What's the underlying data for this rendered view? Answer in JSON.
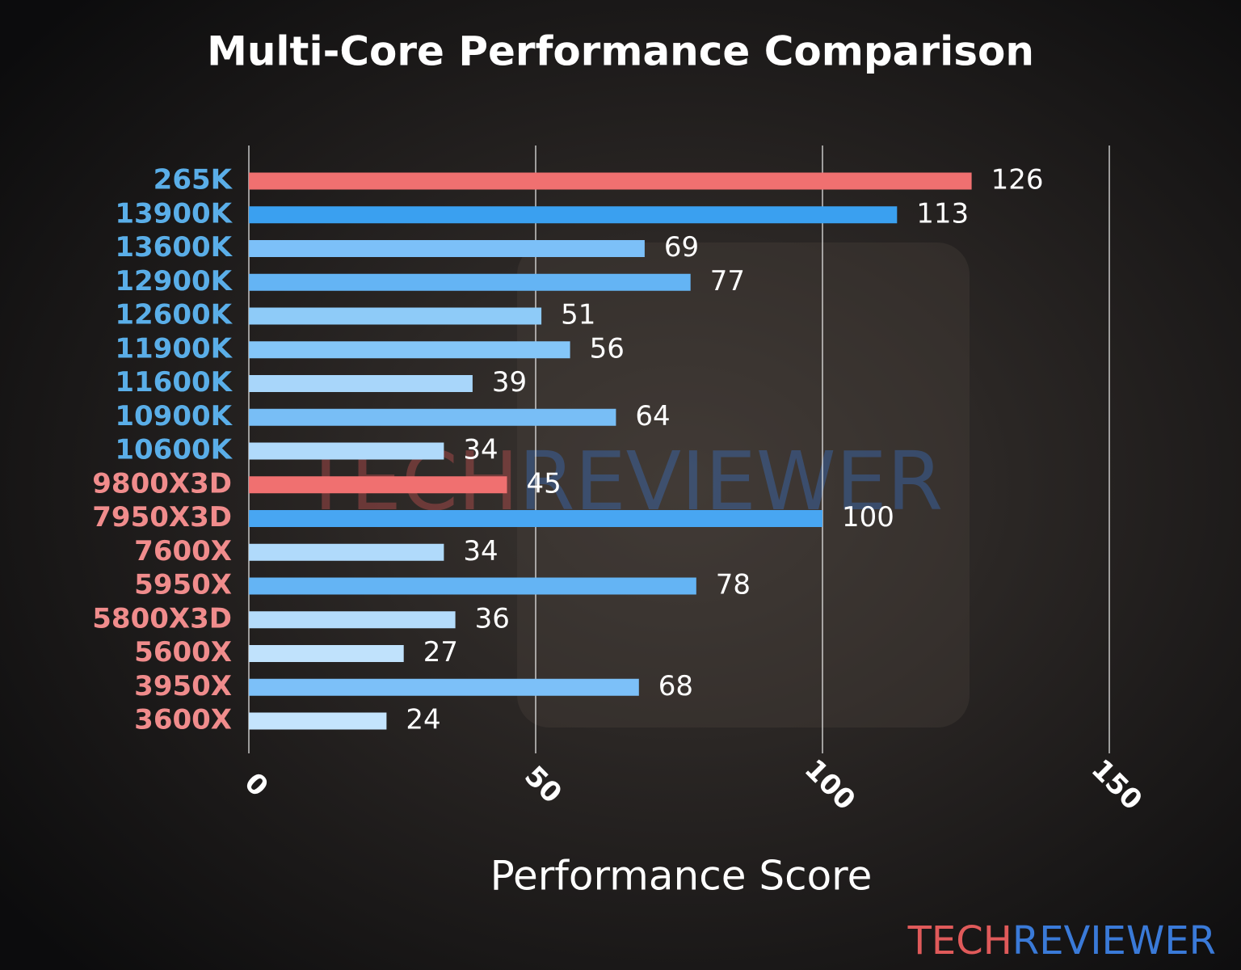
{
  "chart_data": {
    "type": "bar",
    "orientation": "horizontal",
    "title": "Multi-Core Performance Comparison",
    "x_label": "Performance Score",
    "categories": [
      "265K",
      "13900K",
      "13600K",
      "12900K",
      "12600K",
      "11900K",
      "11600K",
      "10900K",
      "10600K",
      "9800X3D",
      "7950X3D",
      "7600X",
      "5950X",
      "5800X3D",
      "5600X",
      "3950X",
      "3600X"
    ],
    "values": [
      126,
      113,
      69,
      77,
      51,
      56,
      39,
      64,
      34,
      45,
      100,
      34,
      78,
      36,
      27,
      68,
      24
    ],
    "colors": [
      "#f07070",
      "#3aa0f0",
      "#7cc0f8",
      "#64b4f4",
      "#8ecbf8",
      "#84c6f8",
      "#a8d6fa",
      "#78bef6",
      "#b0dafb",
      "#f07070",
      "#48a6f2",
      "#b0dafb",
      "#64b4f4",
      "#b4dcfb",
      "#c0e2fc",
      "#7cc0f8",
      "#c4e4fd"
    ],
    "label_colors": [
      "#5aaee8",
      "#5aaee8",
      "#5aaee8",
      "#5aaee8",
      "#5aaee8",
      "#5aaee8",
      "#5aaee8",
      "#5aaee8",
      "#5aaee8",
      "#f08c8c",
      "#f08c8c",
      "#f08c8c",
      "#f08c8c",
      "#f08c8c",
      "#f08c8c",
      "#f08c8c",
      "#f08c8c"
    ],
    "xlim": [
      0,
      150
    ],
    "xticks": [
      0,
      50,
      100,
      150
    ],
    "grid": true,
    "watermark": {
      "parts": [
        "TECH",
        "REVIEWER"
      ],
      "colors": [
        "#e05a5a",
        "#3a7ad8"
      ]
    }
  }
}
